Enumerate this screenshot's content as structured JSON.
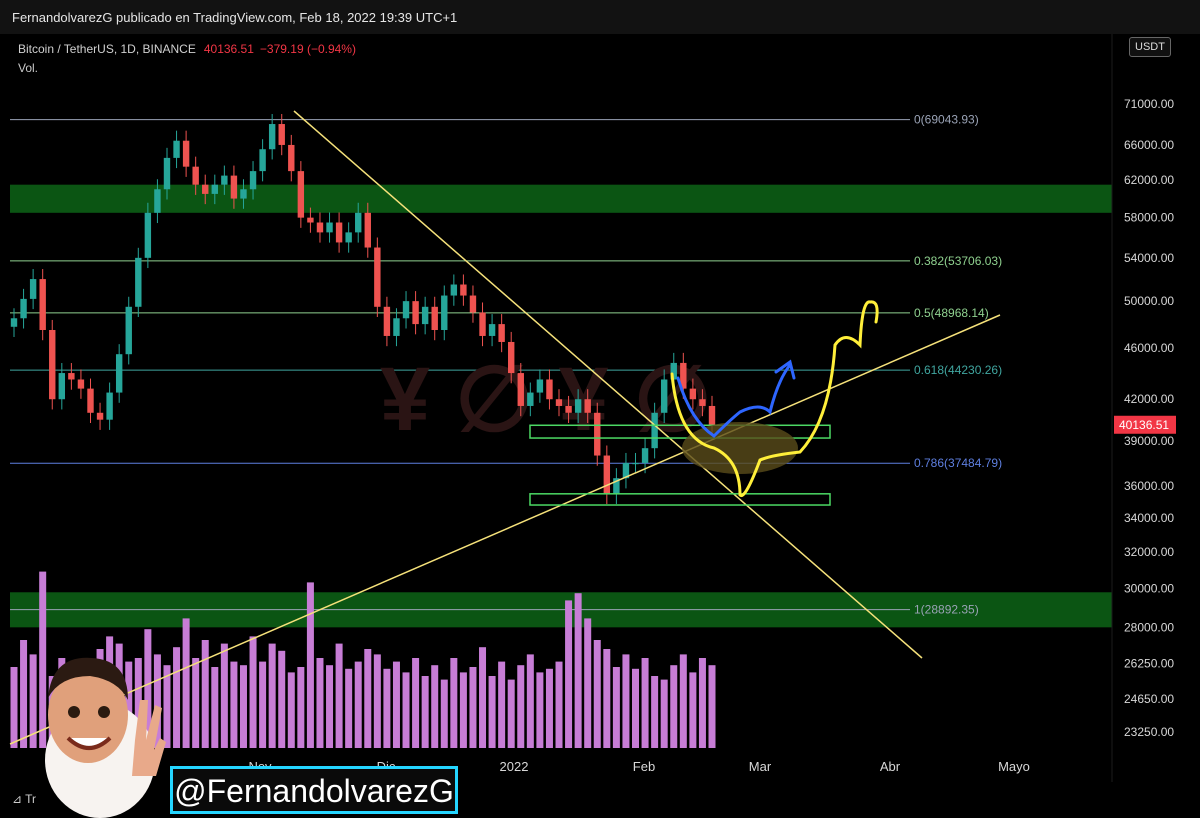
{
  "header": {
    "publisher_text": "FernandolvarezG publicado en TradingView.com, Feb 18, 2022 19:39 UTC+1"
  },
  "legend": {
    "symbol": "Bitcoin / TetherUS, 1D, BINANCE",
    "price": "40136.51",
    "change": "−379.19 (−0.94%)",
    "volume_label": "Vol."
  },
  "currency": "USDT",
  "current_price_tag": "40136.51",
  "handle": "@FernandolvarezG",
  "branding": "Tr",
  "colors": {
    "up": "#26a69a",
    "down": "#ef5350",
    "volume": "#c77dd6",
    "trend": "#f5e17a",
    "zone": "#0c5a14",
    "box": "#4cd964",
    "projection_yellow": "#ffef3a",
    "projection_blue": "#2e66ff"
  },
  "chart_data": {
    "type": "line",
    "title": "Bitcoin / TetherUS, 1D, BINANCE",
    "y_scale": "log",
    "ylim": [
      23000,
      72000
    ],
    "x_labels": [
      "Nov",
      "Dic",
      "2022",
      "Feb",
      "Mar",
      "Abr",
      "Mayo"
    ],
    "y_ticks": [
      "71000.00",
      "66000.00",
      "62000.00",
      "58000.00",
      "54000.00",
      "50000.00",
      "46000.00",
      "42000.00",
      "39000.00",
      "36000.00",
      "34000.00",
      "32000.00",
      "30000.00",
      "28000.00",
      "26250.00",
      "24650.00",
      "23250.00"
    ],
    "fibonacci": [
      {
        "label": "0(69043.93)",
        "value": 69043.93,
        "color": "#9aa3b6"
      },
      {
        "label": "0.382(53706.03)",
        "value": 53706.03,
        "color": "#8fd18f"
      },
      {
        "label": "0.5(48968.14)",
        "value": 48968.14,
        "color": "#8fd18f"
      },
      {
        "label": "0.618(44230.26)",
        "value": 44230.26,
        "color": "#40a6a0"
      },
      {
        "label": "0.786(37484.79)",
        "value": 37484.79,
        "color": "#5e7fe0"
      },
      {
        "label": "1(28892.35)",
        "value": 28892.35,
        "color": "#9aa3b6"
      }
    ],
    "zones": [
      {
        "from": 58500,
        "to": 61500
      },
      {
        "from": 28000,
        "to": 29800
      }
    ],
    "support_boxes": [
      {
        "from": 39200,
        "to": 40100
      },
      {
        "from": 34800,
        "to": 35500
      }
    ],
    "price_path": [
      48500,
      50200,
      52000,
      47500,
      42000,
      44000,
      43500,
      42800,
      41000,
      40500,
      42500,
      45500,
      49500,
      54000,
      58500,
      61000,
      64500,
      66500,
      63500,
      61500,
      60500,
      61500,
      62500,
      60000,
      61000,
      63000,
      65500,
      68500,
      66000,
      63000,
      58000,
      57500,
      56500,
      57500,
      55500,
      56500,
      58500,
      55000,
      49500,
      47000,
      48500,
      50000,
      48000,
      49500,
      47500,
      50500,
      51500,
      50500,
      49000,
      47000,
      48000,
      46500,
      44000,
      41500,
      42500,
      43500,
      42000,
      41500,
      41000,
      42000,
      41000,
      38000,
      35500,
      36500,
      37500,
      37500,
      38500,
      41000,
      43500,
      44800,
      42800,
      42000,
      41500,
      40136.51
    ],
    "volume_scale": [
      0.45,
      0.6,
      0.52,
      0.98,
      0.4,
      0.5,
      0.42,
      0.48,
      0.44,
      0.55,
      0.62,
      0.58,
      0.48,
      0.5,
      0.66,
      0.52,
      0.46,
      0.56,
      0.72,
      0.5,
      0.6,
      0.45,
      0.58,
      0.48,
      0.46,
      0.62,
      0.48,
      0.58,
      0.54,
      0.42,
      0.45,
      0.92,
      0.5,
      0.46,
      0.58,
      0.44,
      0.48,
      0.55,
      0.52,
      0.44,
      0.48,
      0.42,
      0.5,
      0.4,
      0.46,
      0.38,
      0.5,
      0.42,
      0.45,
      0.56,
      0.4,
      0.48,
      0.38,
      0.46,
      0.52,
      0.42,
      0.44,
      0.48,
      0.82,
      0.86,
      0.72,
      0.6,
      0.55,
      0.45,
      0.52,
      0.44,
      0.5,
      0.4,
      0.38,
      0.46,
      0.52,
      0.42,
      0.5,
      0.46
    ]
  }
}
